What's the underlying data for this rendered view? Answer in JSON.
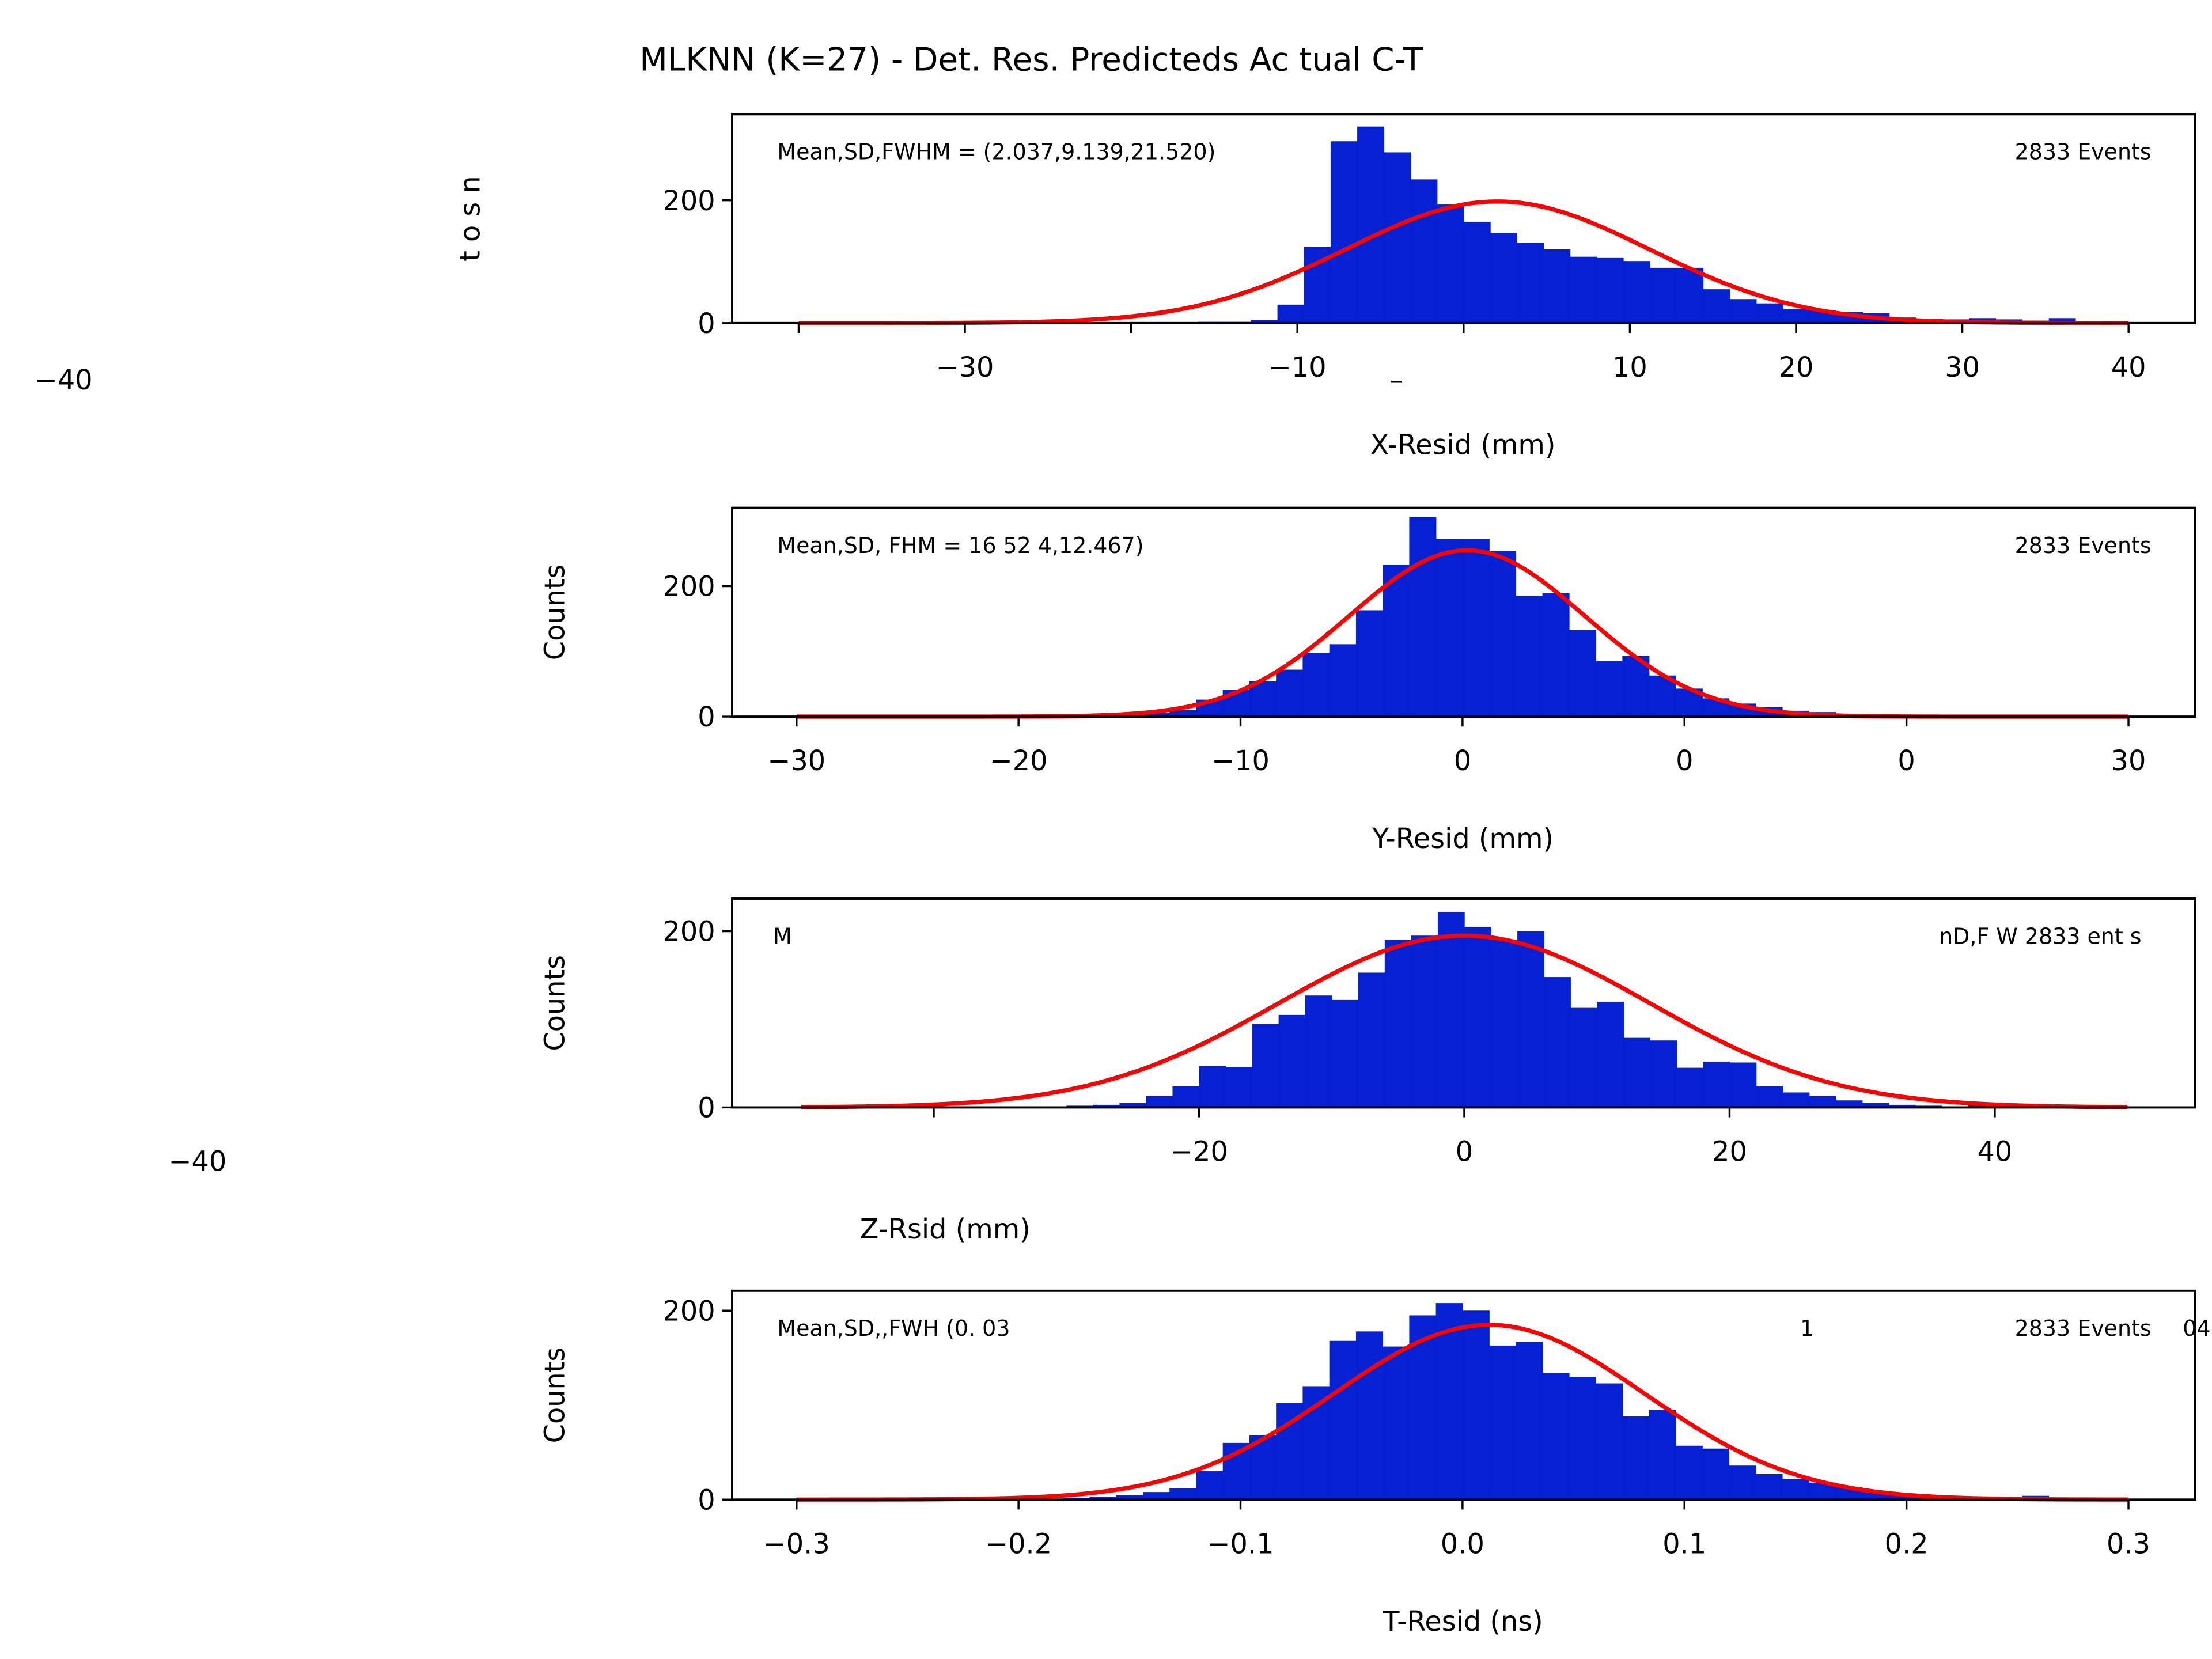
{
  "title": "MLKNN (K=27) - Det. Res. Predicteds Ac  tual   C-T",
  "stray_labels": [
    "−40",
    "–",
    "−40"
  ],
  "chart_data": [
    {
      "type": "histogram",
      "xlabel": "X-Resid (mm)",
      "ylabel": "t  o  s  n",
      "color": "#0521d1",
      "fit_color": "#ff0000",
      "bins": [
        -40,
        -38.4,
        -36.8,
        -35.2,
        -33.6,
        -32,
        -30.4,
        -28.8,
        -27.2,
        -25.6,
        -24,
        -22.4,
        -20.8,
        -19.2,
        -17.6,
        -16,
        -14.4,
        -12.8,
        -11.2,
        -9.6,
        -8,
        -6.4,
        -4.8,
        -3.2,
        -1.6,
        0,
        1.6,
        3.2,
        4.8,
        6.4,
        8,
        9.6,
        11.2,
        12.8,
        14.4,
        16,
        17.6,
        19.2,
        20.8,
        22.4,
        24,
        25.6,
        27.2,
        28.8,
        30.4,
        32,
        33.6,
        35.2,
        36.8,
        38.4,
        40
      ],
      "values": [
        1,
        1,
        0,
        1,
        0,
        1,
        0,
        1,
        1,
        0,
        1,
        1,
        0,
        1,
        1,
        2,
        2,
        5,
        30,
        124,
        296,
        320,
        278,
        234,
        193,
        165,
        147,
        131,
        120,
        108,
        106,
        101,
        90,
        90,
        55,
        39,
        32,
        23,
        21,
        18,
        16,
        9,
        7,
        6,
        8,
        6,
        4,
        8,
        3,
        2
      ],
      "fit": {
        "mean": 2.037,
        "sd": 9.139,
        "amplitude": 198
      },
      "xlim": [
        -44,
        44
      ],
      "ylim": [
        0,
        340
      ],
      "xticks": [
        {
          "value": -40,
          "label": null
        },
        {
          "value": -30,
          "label": "−30"
        },
        {
          "value": -20,
          "label": null
        },
        {
          "value": -10,
          "label": "−10"
        },
        {
          "value": 0,
          "label": null
        },
        10,
        20,
        30,
        40
      ],
      "yticks": [
        0,
        200
      ],
      "annotations": [
        "Mean,SD,FWHM = (2.037,9.139,21.520)",
        "2833 Events"
      ]
    },
    {
      "type": "histogram",
      "xlabel": "Y-Resid (mm)",
      "ylabel": "Counts",
      "color": "#0521d1",
      "fit_color": "#ff0000",
      "bins": [
        -30,
        -28.8,
        -27.6,
        -26.4,
        -25.2,
        -24,
        -22.8,
        -21.6,
        -20.4,
        -19.2,
        -18,
        -16.8,
        -15.6,
        -14.4,
        -13.2,
        -12,
        -10.8,
        -9.6,
        -8.4,
        -7.2,
        -6,
        -4.8,
        -3.6,
        -2.4,
        -1.2,
        0,
        1.2,
        2.4,
        3.6,
        4.8,
        6,
        7.2,
        8.4,
        9.6,
        10.8,
        12,
        13.2,
        14.4,
        15.6,
        16.8,
        18,
        19.2,
        20.4,
        21.6,
        22.8,
        24,
        25.2,
        26.4,
        27.6,
        28.8,
        30
      ],
      "values": [
        0,
        0,
        0,
        0,
        0,
        1,
        0,
        0,
        1,
        1,
        1,
        2,
        3,
        6,
        10,
        26,
        41,
        54,
        72,
        98,
        111,
        163,
        233,
        306,
        272,
        272,
        254,
        185,
        189,
        133,
        85,
        93,
        63,
        43,
        28,
        20,
        15,
        9,
        7,
        4,
        3,
        2,
        2,
        1,
        1,
        1,
        0,
        1,
        0,
        0
      ],
      "fit": {
        "mean": 0.2,
        "sd": 5.3,
        "amplitude": 255
      },
      "xlim": [
        -32.9,
        33
      ],
      "ylim": [
        0,
        320
      ],
      "xticks": [
        {
          "value": -30,
          "label": "−30"
        },
        {
          "value": -20,
          "label": "−20"
        },
        {
          "value": -10,
          "label": "−10"
        },
        0,
        {
          "value": 10,
          "label": "0"
        },
        {
          "value": 20,
          "label": "0"
        },
        30
      ],
      "yticks": [
        0,
        200
      ],
      "annotations": [
        "Mean,SD, FHM =   16  52  4,12.467)",
        "2833 Events"
      ]
    },
    {
      "type": "histogram",
      "xlabel": "Z-Rsid (mm)",
      "ylabel": "Counts",
      "color": "#0521d1",
      "fit_color": "#ff0000",
      "bins": [
        -50,
        -48,
        -46,
        -44,
        -42,
        -40,
        -38,
        -36,
        -34,
        -32,
        -30,
        -28,
        -26,
        -24,
        -22,
        -20,
        -18,
        -16,
        -14,
        -12,
        -10,
        -8,
        -6,
        -4,
        -2,
        0,
        2,
        4,
        6,
        8,
        10,
        12,
        14,
        16,
        18,
        20,
        22,
        24,
        26,
        28,
        30,
        32,
        34,
        36,
        38,
        40,
        42,
        44,
        46,
        48,
        50
      ],
      "values": [
        0,
        0,
        0,
        0,
        2,
        1,
        0,
        1,
        1,
        1,
        2,
        3,
        5,
        13,
        24,
        47,
        46,
        95,
        105,
        127,
        122,
        153,
        190,
        195,
        222,
        205,
        190,
        200,
        148,
        113,
        120,
        79,
        76,
        45,
        52,
        51,
        24,
        17,
        13,
        8,
        5,
        3,
        2,
        1,
        3,
        1,
        0,
        0,
        0,
        0
      ],
      "fit": {
        "mean": 0,
        "sd": 14,
        "amplitude": 195
      },
      "xlim": [
        -55.2,
        55.1
      ],
      "ylim": [
        0,
        237
      ],
      "xticks": [
        {
          "value": -40,
          "label": null
        },
        {
          "value": -20,
          "label": "−20"
        },
        0,
        20,
        40
      ],
      "yticks": [
        0,
        200
      ],
      "annotations": [
        "M",
        "nD,F  W  2833 ent   s"
      ]
    },
    {
      "type": "histogram",
      "xlabel": "T-Resid (ns)",
      "ylabel": "Counts",
      "color": "#0521d1",
      "fit_color": "#ff0000",
      "bins": [
        -0.3,
        -0.288,
        -0.276,
        -0.264,
        -0.252,
        -0.24,
        -0.228,
        -0.216,
        -0.204,
        -0.192,
        -0.18,
        -0.168,
        -0.156,
        -0.144,
        -0.132,
        -0.12,
        -0.108,
        -0.096,
        -0.084,
        -0.072,
        -0.06,
        -0.048,
        -0.036,
        -0.024,
        -0.012,
        0,
        0.012,
        0.024,
        0.036,
        0.048,
        0.06,
        0.072,
        0.084,
        0.096,
        0.108,
        0.12,
        0.132,
        0.144,
        0.156,
        0.168,
        0.18,
        0.192,
        0.204,
        0.216,
        0.228,
        0.24,
        0.252,
        0.264,
        0.276,
        0.288,
        0.3
      ],
      "values": [
        0,
        0,
        0,
        0,
        0,
        1,
        1,
        0,
        1,
        1,
        2,
        3,
        5,
        8,
        12,
        30,
        60,
        68,
        102,
        120,
        168,
        178,
        162,
        195,
        208,
        200,
        163,
        167,
        134,
        130,
        123,
        88,
        95,
        57,
        54,
        36,
        27,
        22,
        18,
        13,
        8,
        5,
        4,
        3,
        2,
        2,
        4,
        1,
        0,
        0
      ],
      "fit": {
        "mean": 0.012,
        "sd": 0.07,
        "amplitude": 185
      },
      "xlim": [
        -0.329,
        0.33
      ],
      "ylim": [
        0,
        221
      ],
      "xticks": [
        {
          "value": -0.3,
          "label": "−0.3"
        },
        {
          "value": -0.2,
          "label": "−0.2"
        },
        {
          "value": -0.1,
          "label": "−0.1"
        },
        {
          "value": 0,
          "label": "0.0"
        },
        0.1,
        0.2,
        0.3
      ],
      "yticks": [
        0,
        200
      ],
      "annotations": [
        "Mean,SD,,FWH  (0.  03",
        "1",
        "2833 Events",
        "04"
      ]
    }
  ]
}
